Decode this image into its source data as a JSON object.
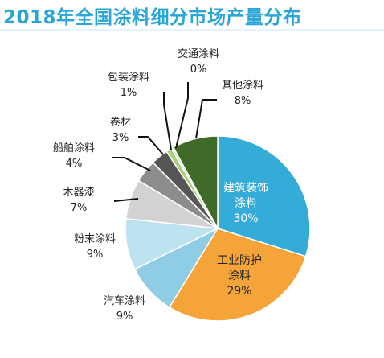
{
  "chart_data": {
    "type": "pie",
    "title": "2018年全国涂料细分市场产量分布",
    "slices": [
      {
        "label": "建筑装饰涂料",
        "lines": [
          "建筑装饰",
          "涂料"
        ],
        "display": "30%",
        "value": 30,
        "color": "#35acd8",
        "label_color": "#ffffff"
      },
      {
        "label": "工业防护涂料",
        "lines": [
          "工业防护",
          "涂料"
        ],
        "display": "29%",
        "value": 29,
        "color": "#f5a43a",
        "label_color": "#222222"
      },
      {
        "label": "汽车涂料",
        "lines": [
          "汽车涂料"
        ],
        "display": "9%",
        "value": 9,
        "color": "#8ecde4",
        "label_color": "#222222"
      },
      {
        "label": "粉末涂料",
        "lines": [
          "粉末涂料"
        ],
        "display": "9%",
        "value": 9,
        "color": "#bde2f0",
        "label_color": "#222222"
      },
      {
        "label": "木器漆",
        "lines": [
          "木器漆"
        ],
        "display": "7%",
        "value": 7,
        "color": "#d2d2d2",
        "label_color": "#222222"
      },
      {
        "label": "船舶涂料",
        "lines": [
          "船舶涂料"
        ],
        "display": "4%",
        "value": 4,
        "color": "#8c8c8c",
        "label_color": "#222222"
      },
      {
        "label": "卷材",
        "lines": [
          "卷材"
        ],
        "display": "3%",
        "value": 3,
        "color": "#565656",
        "label_color": "#222222"
      },
      {
        "label": "包装涂料",
        "lines": [
          "包装涂料"
        ],
        "display": "1%",
        "value": 1,
        "color": "#a9cf7a",
        "label_color": "#222222"
      },
      {
        "label": "交通涂料",
        "lines": [
          "交通涂料"
        ],
        "display": "0%",
        "value": 0.4,
        "color": "#d8ebb8",
        "label_color": "#222222"
      },
      {
        "label": "其他涂料",
        "lines": [
          "其他涂料"
        ],
        "display": "8%",
        "value": 8,
        "color": "#3f6a2a",
        "label_color": "#222222"
      }
    ],
    "legend": "none"
  }
}
